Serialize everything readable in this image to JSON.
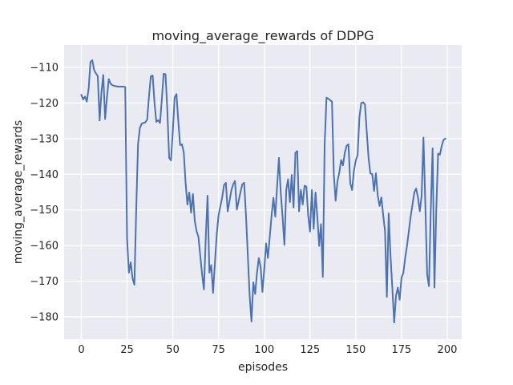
{
  "chart_data": {
    "type": "line",
    "title": "moving_average_rewards of DDPG",
    "xlabel": "episodes",
    "ylabel": "moving_average_rewards",
    "grid": true,
    "legend": false,
    "xlim": [
      -9.4,
      207.9
    ],
    "ylim": [
      -186.3,
      -103.7
    ],
    "xticks": [
      0,
      25,
      50,
      75,
      100,
      125,
      150,
      175,
      200
    ],
    "yticks": [
      -110,
      -120,
      -130,
      -140,
      -150,
      -160,
      -170,
      -180
    ],
    "styles": {
      "figure_bg": "#ffffff",
      "axes_bg": "#eaeaf2",
      "grid_color": "#ffffff",
      "text_color": "#262626",
      "line_color": "#4c72b0"
    },
    "series": [
      {
        "name": "moving_average_rewards",
        "color": "#4c72b0",
        "x_start": 0,
        "x_step": 1,
        "values": [
          -117.7,
          -119.0,
          -118.2,
          -119.6,
          -116.0,
          -108.5,
          -108.0,
          -110.8,
          -111.7,
          -112.5,
          -124.9,
          -117.0,
          -112.1,
          -124.5,
          -118.5,
          -113.3,
          -114.6,
          -115.0,
          -115.2,
          -115.3,
          -115.4,
          -115.4,
          -115.4,
          -115.4,
          -115.5,
          -158.0,
          -167.6,
          -164.7,
          -169.2,
          -171.0,
          -150.0,
          -131.5,
          -127.0,
          -125.8,
          -125.6,
          -125.4,
          -124.6,
          -118.0,
          -112.5,
          -112.3,
          -120.0,
          -125.3,
          -124.8,
          -125.6,
          -119.0,
          -111.8,
          -111.9,
          -121.9,
          -135.4,
          -136.1,
          -128.0,
          -118.5,
          -117.5,
          -125.0,
          -131.8,
          -131.6,
          -133.9,
          -142.5,
          -148.5,
          -145.1,
          -150.8,
          -145.5,
          -153.0,
          -156.0,
          -157.5,
          -162.8,
          -168.0,
          -172.3,
          -158.0,
          -146.0,
          -167.6,
          -165.5,
          -173.3,
          -165.0,
          -157.0,
          -151.5,
          -149.0,
          -146.5,
          -143.0,
          -142.4,
          -150.4,
          -147.5,
          -144.5,
          -142.8,
          -141.9,
          -149.9,
          -147.5,
          -145.0,
          -142.8,
          -142.4,
          -151.5,
          -162.8,
          -174.0,
          -181.3,
          -170.3,
          -173.6,
          -167.7,
          -163.5,
          -166.0,
          -173.0,
          -166.5,
          -159.4,
          -163.5,
          -157.5,
          -151.5,
          -146.6,
          -151.9,
          -143.5,
          -135.4,
          -145.1,
          -152.0,
          -159.8,
          -144.4,
          -141.4,
          -147.8,
          -140.2,
          -149.3,
          -134.0,
          -133.5,
          -150.4,
          -144.4,
          -148.5,
          -143.2,
          -143.5,
          -151.5,
          -156.1,
          -144.4,
          -155.3,
          -145.1,
          -152.0,
          -160.1,
          -154.0,
          -168.8,
          -131.6,
          -118.5,
          -118.8,
          -119.2,
          -119.6,
          -140.0,
          -147.4,
          -142.0,
          -139.5,
          -136.0,
          -137.5,
          -134.0,
          -132.0,
          -131.6,
          -142.5,
          -144.4,
          -139.0,
          -136.1,
          -134.6,
          -124.0,
          -120.0,
          -119.8,
          -120.4,
          -128.0,
          -135.4,
          -139.8,
          -139.9,
          -144.7,
          -139.7,
          -145.9,
          -148.9,
          -146.5,
          -151.5,
          -156.0,
          -174.4,
          -151.0,
          -163.0,
          -172.0,
          -181.6,
          -174.0,
          -171.8,
          -175.2,
          -169.0,
          -167.7,
          -163.5,
          -160.1,
          -156.0,
          -151.9,
          -148.5,
          -145.1,
          -144.0,
          -146.5,
          -150.4,
          -146.0,
          -129.7,
          -148.0,
          -168.0,
          -171.4,
          -150.0,
          -132.7,
          -171.8,
          -150.0,
          -134.2,
          -134.5,
          -132.0,
          -130.3,
          -130.0
        ]
      }
    ]
  }
}
